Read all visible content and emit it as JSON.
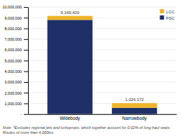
{
  "chart_data": {
    "type": "bar",
    "stacked": true,
    "categories": [
      "Widebody",
      "Narrowbody"
    ],
    "series": [
      {
        "name": "FSC",
        "color": "#1f3068",
        "values": [
          8800000,
          590000
        ]
      },
      {
        "name": "LCC",
        "color": "#f0b429",
        "values": [
          369420,
          436172
        ]
      }
    ],
    "ylim": [
      0,
      10000000
    ],
    "yticks": [
      {
        "value": 0,
        "label": "-"
      },
      {
        "value": 1000000,
        "label": "1,000,000"
      },
      {
        "value": 2000000,
        "label": "2,000,000"
      },
      {
        "value": 3000000,
        "label": "3,000,000"
      },
      {
        "value": 4000000,
        "label": "4,000,000"
      },
      {
        "value": 5000000,
        "label": "5,000,000"
      },
      {
        "value": 6000000,
        "label": "6,000,000"
      },
      {
        "value": 7000000,
        "label": "7,000,000"
      },
      {
        "value": 8000000,
        "label": "8,000,000"
      },
      {
        "value": 9000000,
        "label": "9,000,000"
      },
      {
        "value": 10000000,
        "label": "10,000,000"
      }
    ],
    "annotations": [
      {
        "text": "9,169,420",
        "x": "Widebody",
        "y": 9169420
      },
      {
        "text": "1,026,172",
        "x": "Narrowbody",
        "y": 1026172
      },
      {
        "text": "Note: *Excludes regional jets and turboprops, which together account for 0.02% of long haul seats.\nRoutes of more than 4,000km."
      }
    ],
    "grid": true,
    "legend": "upper right"
  }
}
